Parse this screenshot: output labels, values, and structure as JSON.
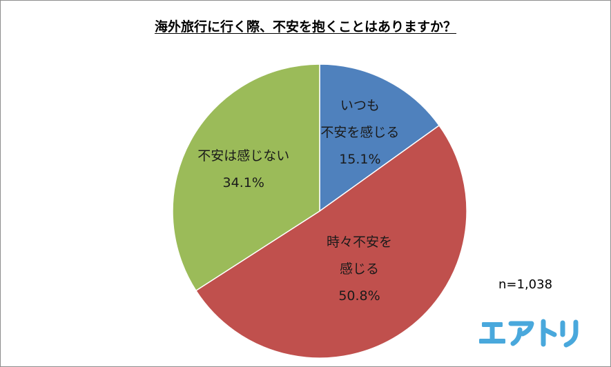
{
  "title": "海外旅行に行く際、不安を抱くことはありますか？",
  "note": "n=1,038",
  "logo_text": "エアトリ",
  "colors": {
    "always": "#4f81bd",
    "sometimes": "#c0504d",
    "never": "#9bbb59",
    "logo": "#49a8dc"
  },
  "chart_data": {
    "type": "pie",
    "title": "海外旅行に行く際、不安を抱くことはありますか？",
    "start_angle_deg": 0,
    "direction": "clockwise",
    "slices": [
      {
        "label_lines": [
          "いつも",
          "不安を感じる"
        ],
        "value": 15.1,
        "display": "15.1%",
        "color": "#4f81bd"
      },
      {
        "label_lines": [
          "時々不安を",
          "感じる"
        ],
        "value": 50.8,
        "display": "50.8%",
        "color": "#c0504d"
      },
      {
        "label_lines": [
          "不安は感じない"
        ],
        "value": 34.1,
        "display": "34.1%",
        "color": "#9bbb59"
      }
    ],
    "legend": "none"
  }
}
